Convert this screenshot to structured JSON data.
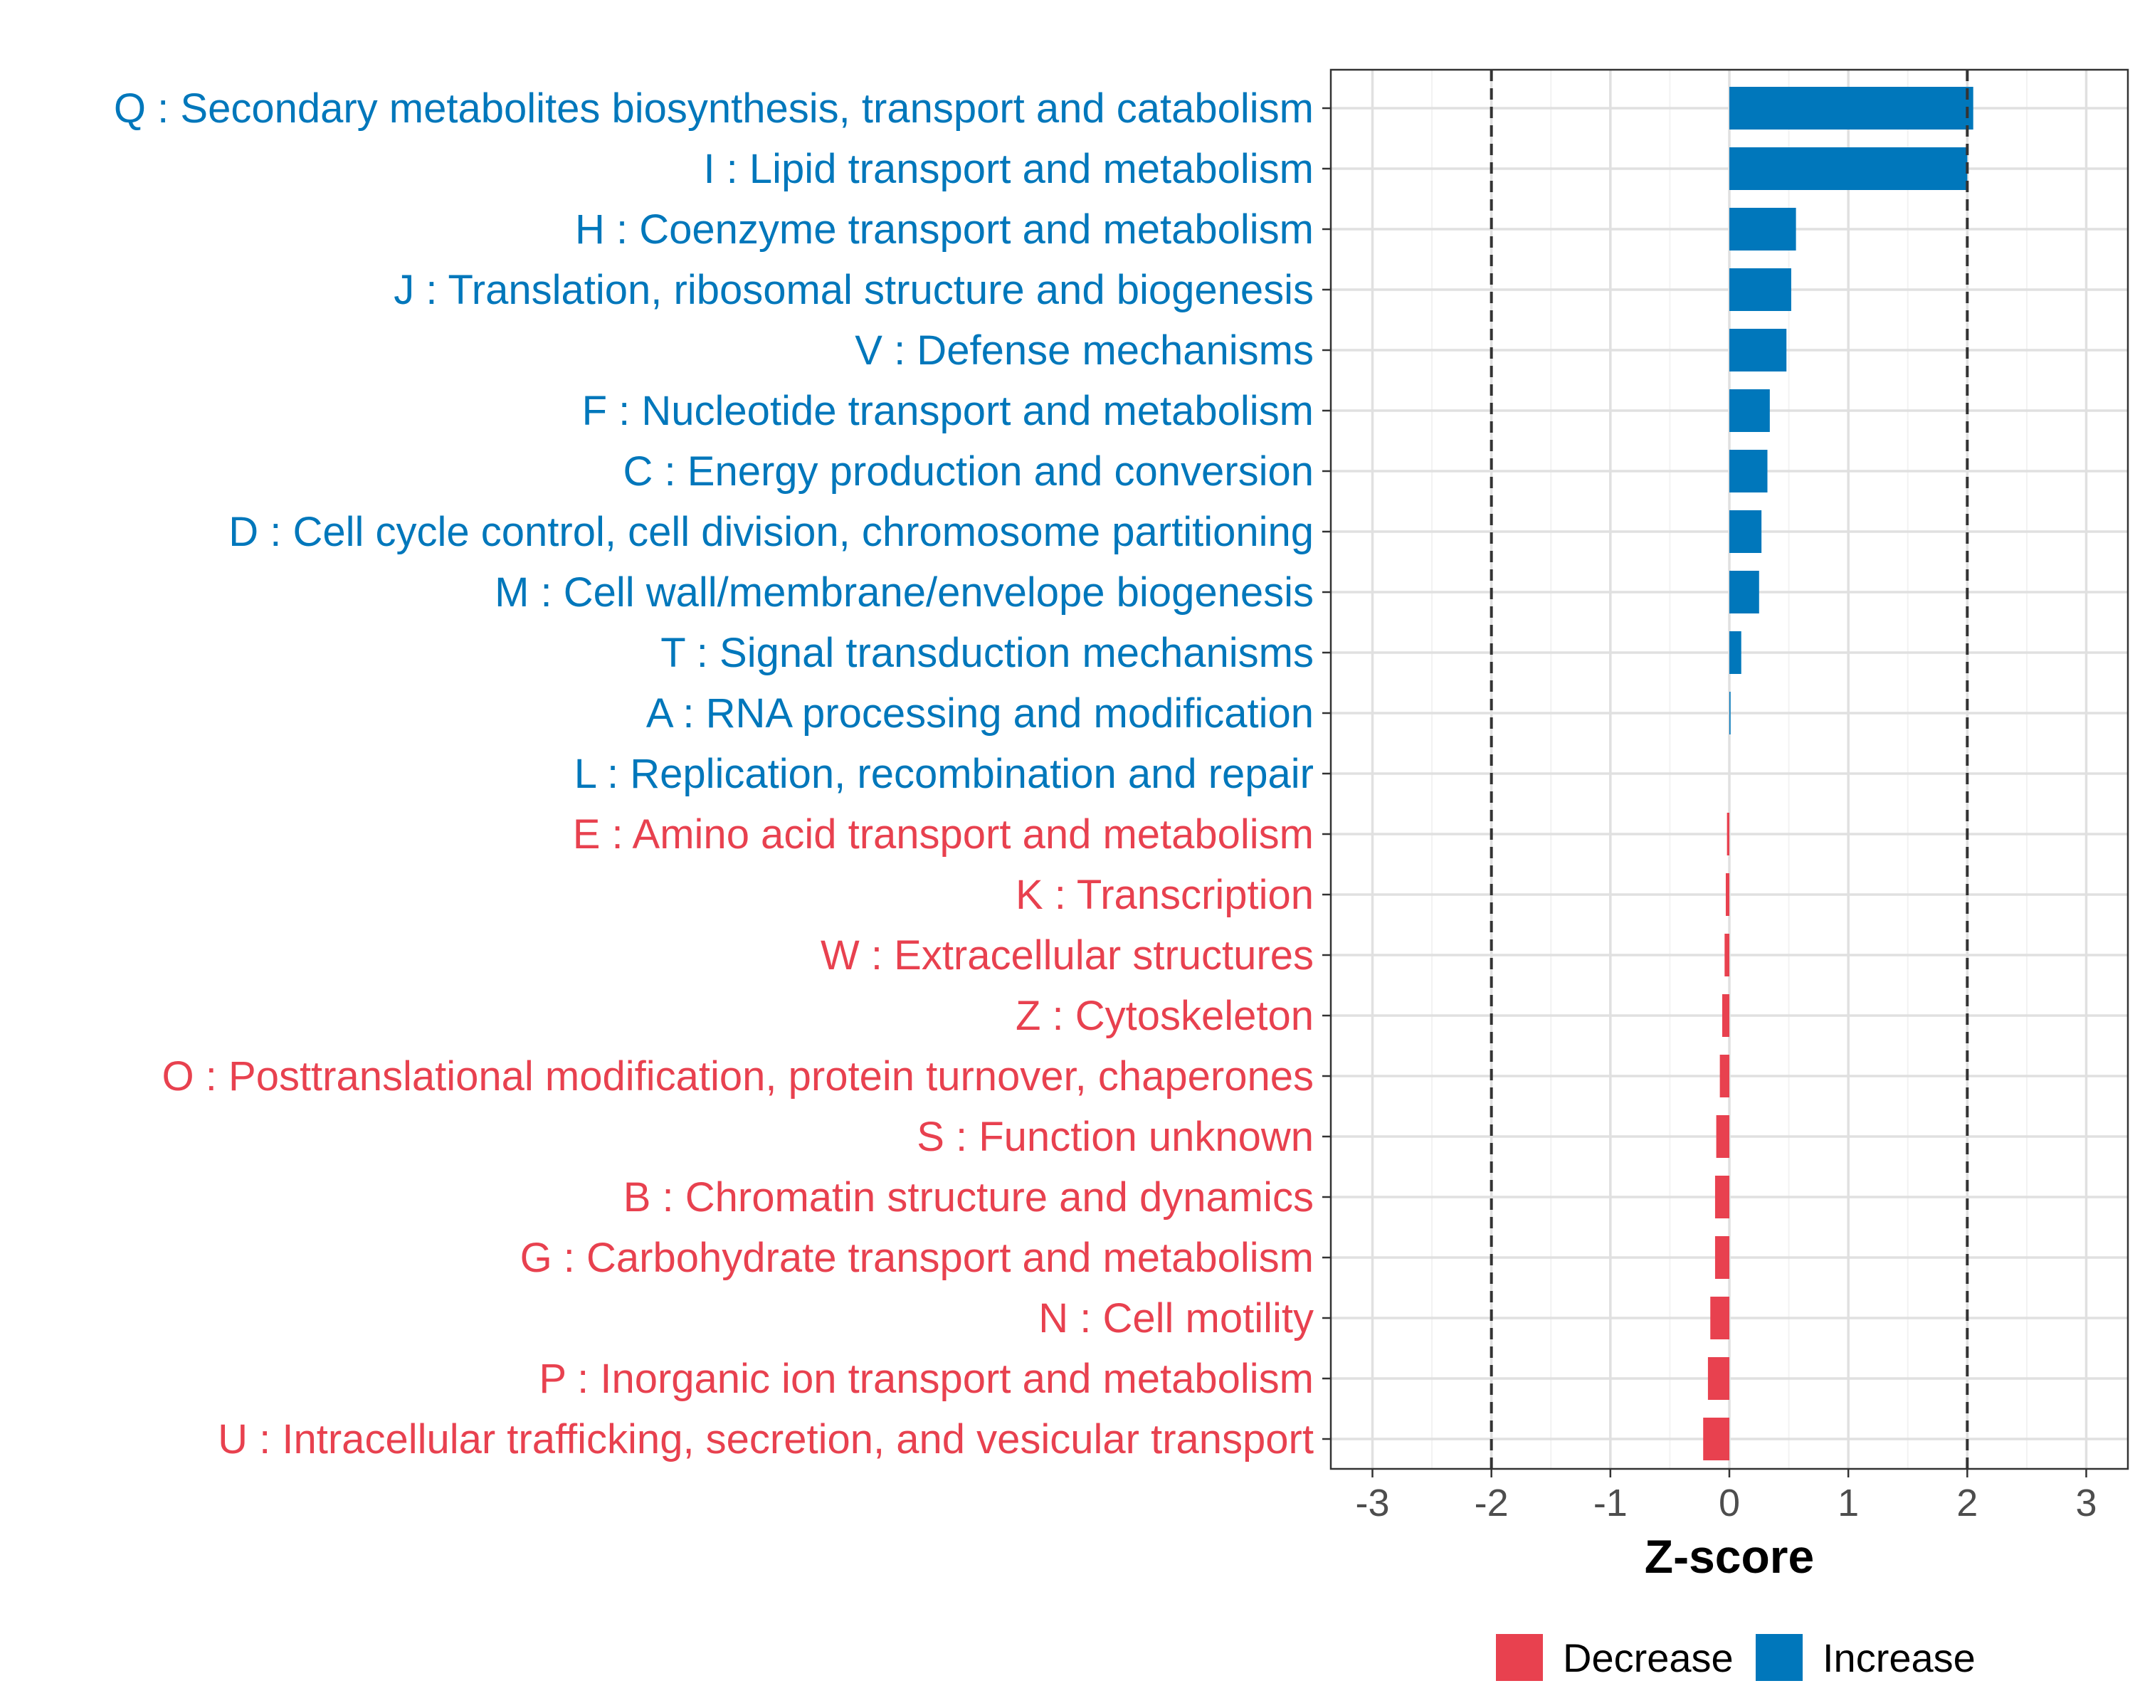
{
  "chart_data": {
    "type": "bar",
    "orientation": "horizontal",
    "xlabel": "Z-score",
    "ylabel": "",
    "xlim": [
      -3.35,
      3.35
    ],
    "x_ticks": [
      -3,
      -2,
      -1,
      0,
      1,
      2,
      3
    ],
    "x_tick_labels": [
      "-3",
      "-2",
      "-1",
      "0",
      "1",
      "2",
      "3"
    ],
    "threshold_lines": [
      -2,
      2
    ],
    "grid": true,
    "legend_position": "bottom",
    "colors": {
      "Decrease": "#E8414F",
      "Increase": "#0077BB"
    },
    "legend": [
      {
        "name": "Decrease",
        "color": "#E8414F"
      },
      {
        "name": "Increase",
        "color": "#0077BB"
      }
    ],
    "categories": [
      "Q : Secondary metabolites biosynthesis, transport and catabolism",
      "I : Lipid transport and metabolism",
      "H : Coenzyme transport and metabolism",
      "J : Translation, ribosomal structure and biogenesis",
      "V : Defense mechanisms",
      "F : Nucleotide transport and metabolism",
      "C : Energy production and conversion",
      "D : Cell cycle control, cell division, chromosome partitioning",
      "M : Cell wall/membrane/envelope biogenesis",
      "T : Signal transduction mechanisms",
      "A : RNA processing and modification",
      "L : Replication, recombination and repair",
      "E : Amino acid transport and metabolism",
      "K : Transcription",
      "W : Extracellular structures",
      "Z : Cytoskeleton",
      "O : Posttranslational modification, protein turnover, chaperones",
      "S : Function unknown",
      "B : Chromatin structure and dynamics",
      "G : Carbohydrate transport and metabolism",
      "N : Cell motility",
      "P : Inorganic ion transport and metabolism",
      "U : Intracellular trafficking, secretion, and vesicular transport"
    ],
    "values": [
      2.05,
      2.0,
      0.56,
      0.52,
      0.48,
      0.34,
      0.32,
      0.27,
      0.25,
      0.1,
      0.01,
      0.0,
      -0.02,
      -0.03,
      -0.04,
      -0.06,
      -0.08,
      -0.11,
      -0.12,
      -0.12,
      -0.16,
      -0.18,
      -0.22
    ],
    "direction": [
      "Increase",
      "Increase",
      "Increase",
      "Increase",
      "Increase",
      "Increase",
      "Increase",
      "Increase",
      "Increase",
      "Increase",
      "Increase",
      "Increase",
      "Decrease",
      "Decrease",
      "Decrease",
      "Decrease",
      "Decrease",
      "Decrease",
      "Decrease",
      "Decrease",
      "Decrease",
      "Decrease",
      "Decrease"
    ]
  }
}
